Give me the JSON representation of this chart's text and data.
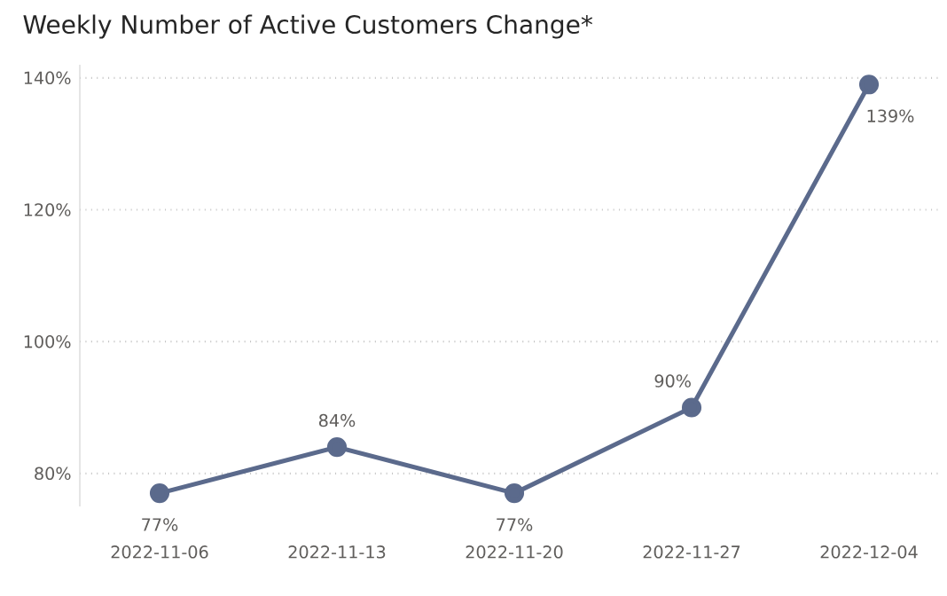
{
  "chart_data": {
    "type": "line",
    "title": "Weekly Number of Active Customers Change*",
    "categories": [
      "2022-11-06",
      "2022-11-13",
      "2022-11-20",
      "2022-11-27",
      "2022-12-04"
    ],
    "values": [
      77,
      84,
      77,
      90,
      139
    ],
    "value_labels": [
      "77%",
      "84%",
      "77%",
      "90%",
      "139%"
    ],
    "color": "#5b6a8c",
    "ylim": [
      75,
      142
    ],
    "yticks": [
      {
        "value": 80,
        "label": "80%"
      },
      {
        "value": 100,
        "label": "100%"
      },
      {
        "value": 120,
        "label": "120%"
      },
      {
        "value": 140,
        "label": "140%"
      }
    ],
    "grid": "y",
    "marker": "circle",
    "line_style": "solid"
  }
}
